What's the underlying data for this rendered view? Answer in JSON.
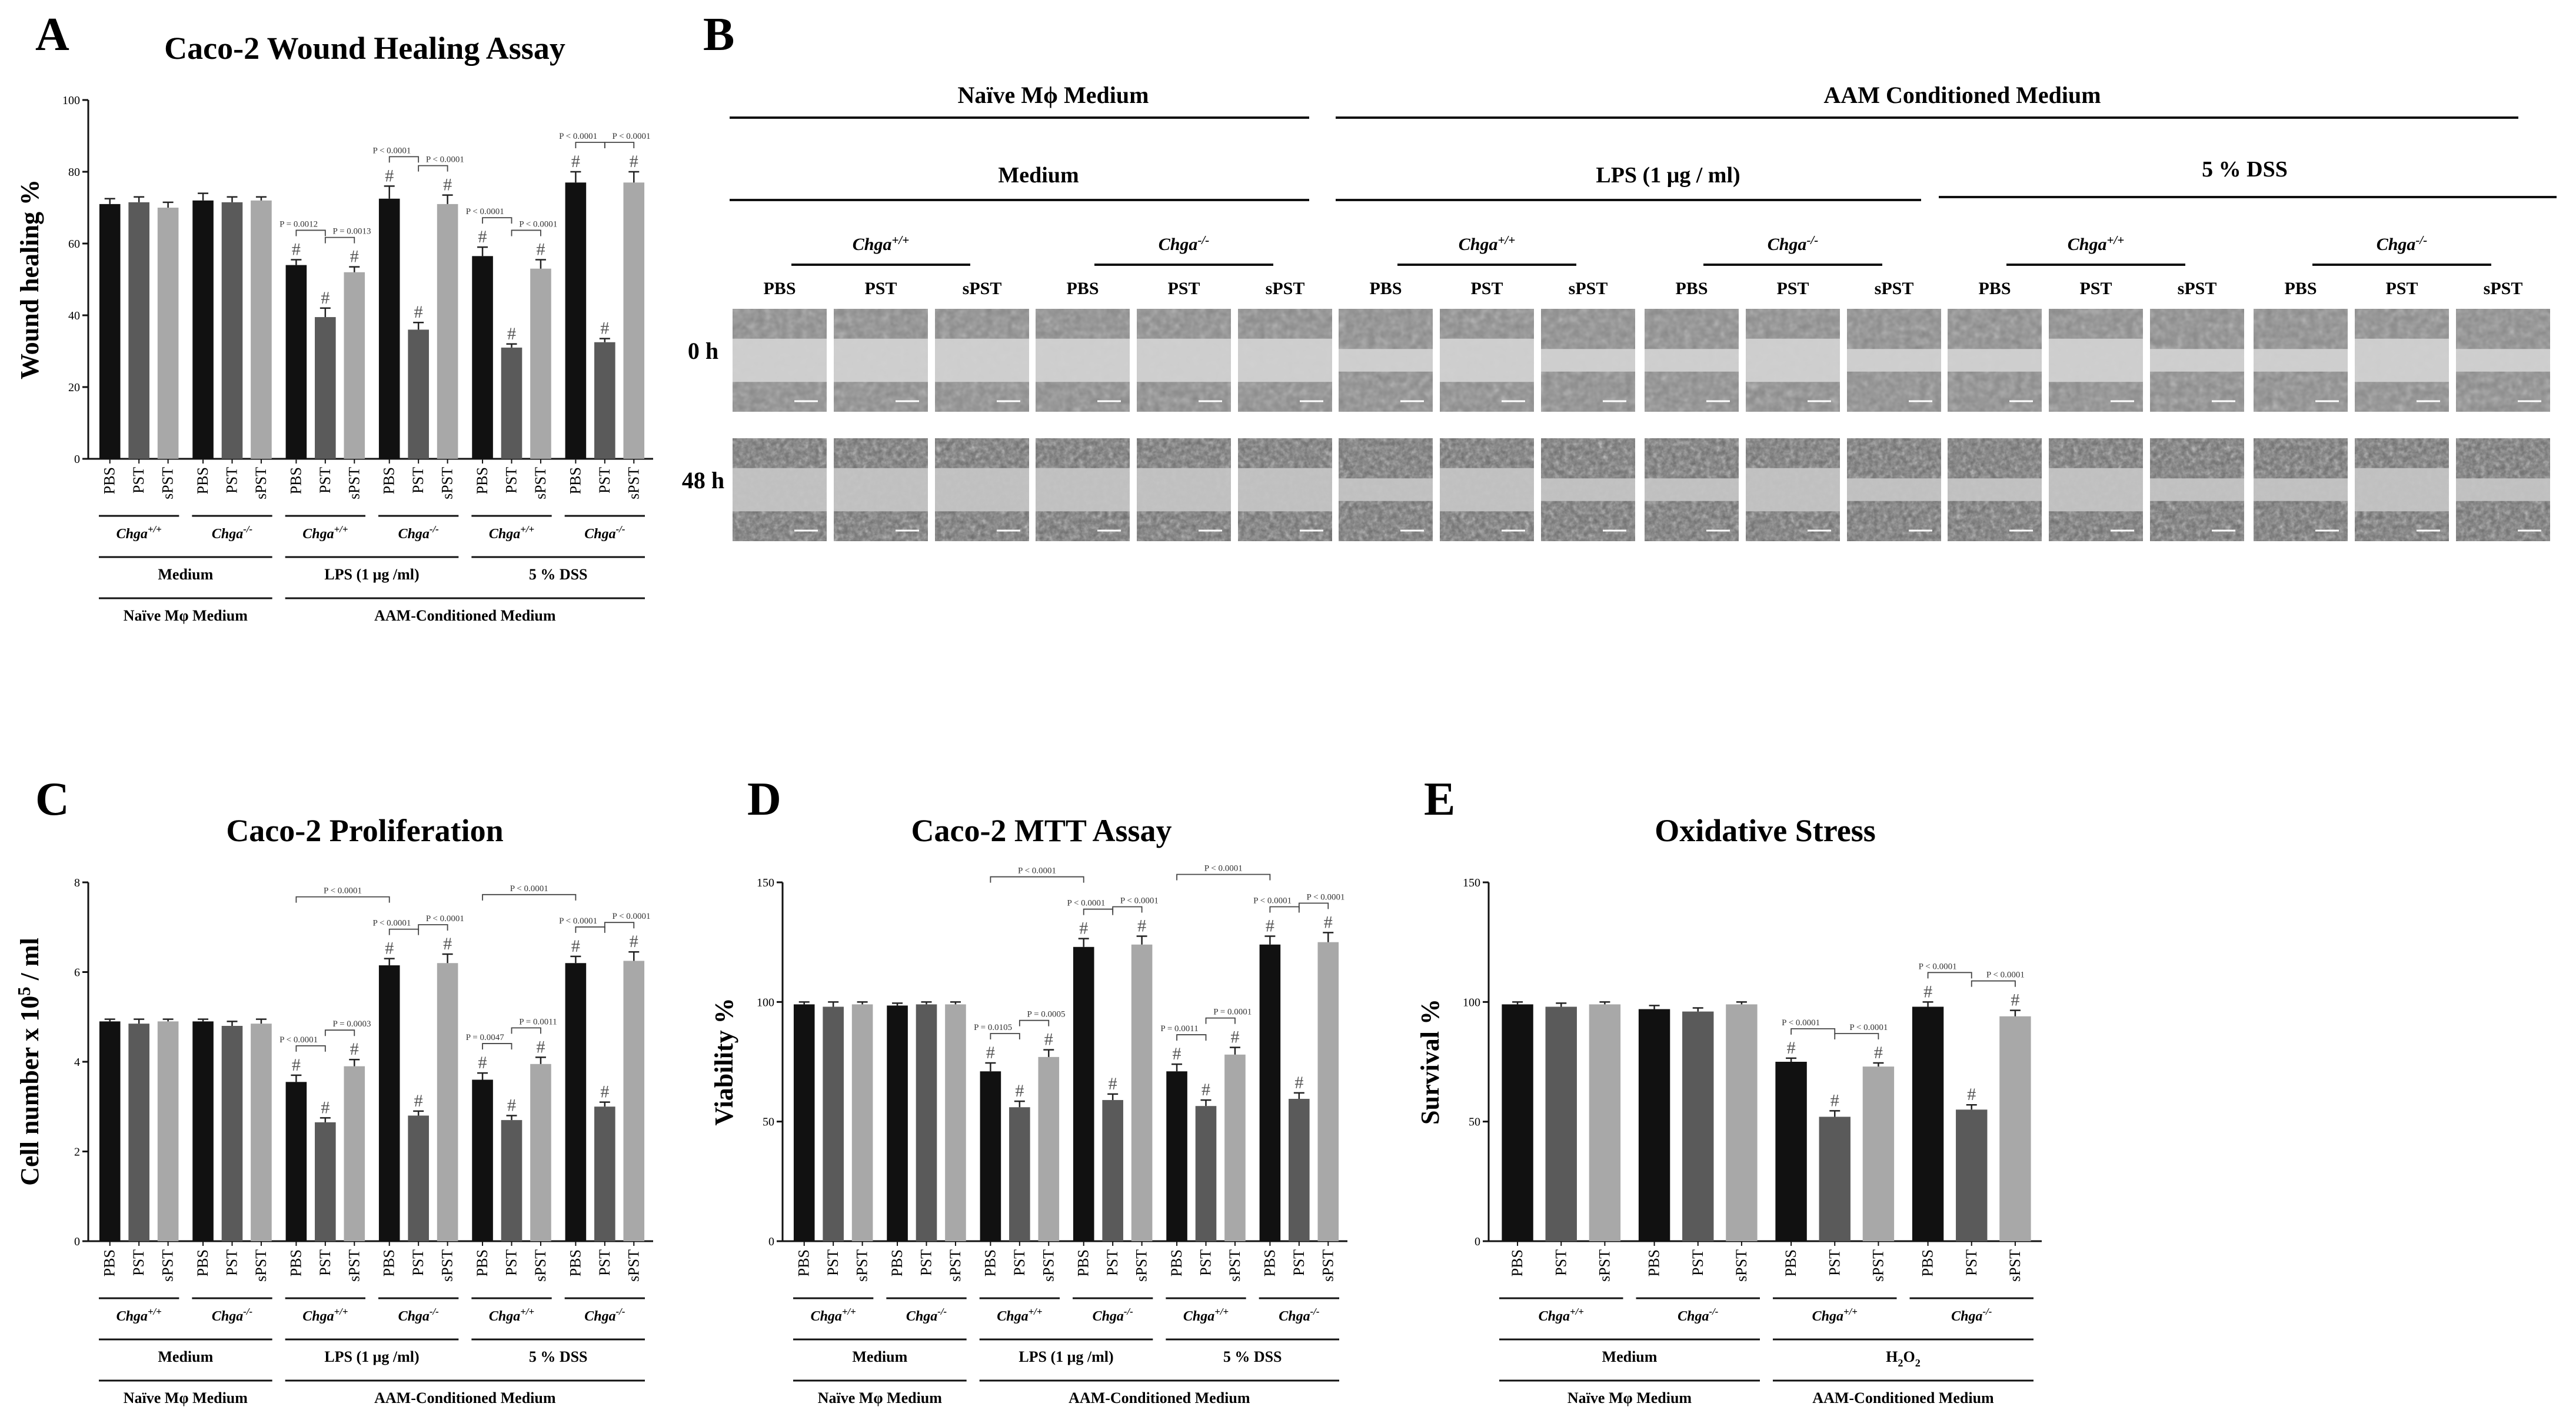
{
  "panel_B": {
    "letter": "B",
    "top_left_title": "Naïve Mϕ Medium",
    "top_right_title": "AAM Conditioned Medium",
    "sub_medium": "Medium",
    "sub_lps": "LPS (1 μg / ml)",
    "sub_dss": "5 % DSS",
    "genotypes": [
      "Chga+/+",
      "Chga-/-",
      "Chga+/+",
      "Chga-/-",
      "Chga+/+",
      "Chga-/-"
    ],
    "columns": [
      "PBS",
      "PST",
      "sPST"
    ],
    "rows": [
      "0 h",
      "48 h"
    ]
  },
  "chart_data": [
    {
      "type": "bar",
      "letter": "A",
      "title": "Caco-2 Wound Healing Assay",
      "ylabel": "Wound healing %",
      "ylim": [
        0,
        100
      ],
      "yticks": [
        "0",
        "20",
        "40",
        "60",
        "80",
        "100"
      ],
      "categories": [
        "PBS",
        "PST",
        "sPST",
        "PBS",
        "PST",
        "sPST",
        "PBS",
        "PST",
        "sPST",
        "PBS",
        "PST",
        "sPST",
        "PBS",
        "PST",
        "sPST",
        "PBS",
        "PST",
        "sPST"
      ],
      "values": [
        71,
        71.5,
        70,
        72,
        71.5,
        72,
        54,
        39.5,
        52,
        72.5,
        36,
        71,
        56.5,
        31,
        53,
        77,
        32.5,
        77
      ],
      "errors": [
        1.5,
        1.5,
        1.5,
        2,
        1.5,
        1,
        1.5,
        2.5,
        1.5,
        3.5,
        2,
        2.5,
        2.5,
        1,
        2.5,
        3,
        1,
        3
      ],
      "colors": [
        "#111111",
        "#5a5a5a",
        "#a8a8a8",
        "#111111",
        "#5a5a5a",
        "#a8a8a8",
        "#111111",
        "#5a5a5a",
        "#a8a8a8",
        "#111111",
        "#5a5a5a",
        "#a8a8a8",
        "#111111",
        "#5a5a5a",
        "#a8a8a8",
        "#111111",
        "#5a5a5a",
        "#a8a8a8"
      ],
      "hash": [
        false,
        false,
        false,
        false,
        false,
        false,
        true,
        true,
        true,
        true,
        true,
        true,
        true,
        true,
        true,
        true,
        true,
        true
      ],
      "genotype_labels": [
        "Chga+/+",
        "Chga-/-",
        "Chga+/+",
        "Chga-/-",
        "Chga+/+",
        "Chga-/-"
      ],
      "treatment_labels": [
        "Medium",
        "LPS (1 μg /ml)",
        "5 % DSS"
      ],
      "medium_labels": [
        "Naïve Mφ Medium",
        "AAM-Conditioned Medium"
      ],
      "comparisons": [
        {
          "a": 6,
          "b": 7,
          "label": "P = 0.0012"
        },
        {
          "a": 7,
          "b": 8,
          "label": "P = 0.0013"
        },
        {
          "a": 9,
          "b": 10,
          "label": "P < 0.0001"
        },
        {
          "a": 10,
          "b": 11,
          "label": "P < 0.0001"
        },
        {
          "a": 12,
          "b": 13,
          "label": "P < 0.0001"
        },
        {
          "a": 13,
          "b": 14,
          "label": "P < 0.0001"
        },
        {
          "a": 15,
          "b": 16,
          "label": "P < 0.0001"
        },
        {
          "a": 16,
          "b": 17,
          "label": "P < 0.0001"
        }
      ]
    },
    {
      "type": "bar",
      "letter": "C",
      "title": "Caco-2 Proliferation",
      "ylabel": "Cell number x 10⁵ / ml",
      "ylim": [
        0,
        8
      ],
      "yticks": [
        "0",
        "2",
        "4",
        "6",
        "8"
      ],
      "categories": [
        "PBS",
        "PST",
        "sPST",
        "PBS",
        "PST",
        "sPST",
        "PBS",
        "PST",
        "sPST",
        "PBS",
        "PST",
        "sPST",
        "PBS",
        "PST",
        "sPST",
        "PBS",
        "PST",
        "sPST"
      ],
      "values": [
        4.9,
        4.85,
        4.9,
        4.9,
        4.8,
        4.85,
        3.55,
        2.65,
        3.9,
        6.15,
        2.8,
        6.2,
        3.6,
        2.7,
        3.95,
        6.2,
        3.0,
        6.25
      ],
      "errors": [
        0.05,
        0.1,
        0.05,
        0.05,
        0.1,
        0.1,
        0.15,
        0.1,
        0.15,
        0.15,
        0.1,
        0.2,
        0.15,
        0.1,
        0.15,
        0.15,
        0.1,
        0.2
      ],
      "colors": [
        "#111111",
        "#5a5a5a",
        "#a8a8a8",
        "#111111",
        "#5a5a5a",
        "#a8a8a8",
        "#111111",
        "#5a5a5a",
        "#a8a8a8",
        "#111111",
        "#5a5a5a",
        "#a8a8a8",
        "#111111",
        "#5a5a5a",
        "#a8a8a8",
        "#111111",
        "#5a5a5a",
        "#a8a8a8"
      ],
      "hash": [
        false,
        false,
        false,
        false,
        false,
        false,
        true,
        true,
        true,
        true,
        true,
        true,
        true,
        true,
        true,
        true,
        true,
        true
      ],
      "genotype_labels": [
        "Chga+/+",
        "Chga-/-",
        "Chga+/+",
        "Chga-/-",
        "Chga+/+",
        "Chga-/-"
      ],
      "treatment_labels": [
        "Medium",
        "LPS (1 μg /ml)",
        "5 % DSS"
      ],
      "medium_labels": [
        "Naïve Mφ Medium",
        "AAM-Conditioned Medium"
      ],
      "comparisons": [
        {
          "a": 6,
          "b": 7,
          "label": "P < 0.0001"
        },
        {
          "a": 7,
          "b": 8,
          "label": "P = 0.0003"
        },
        {
          "a": 9,
          "b": 10,
          "label": "P < 0.0001"
        },
        {
          "a": 10,
          "b": 11,
          "label": "P < 0.0001"
        },
        {
          "a": 6,
          "b": 9,
          "label": "P < 0.0001",
          "level": 2
        },
        {
          "a": 12,
          "b": 13,
          "label": "P = 0.0047"
        },
        {
          "a": 13,
          "b": 14,
          "label": "P = 0.0011"
        },
        {
          "a": 15,
          "b": 16,
          "label": "P < 0.0001"
        },
        {
          "a": 16,
          "b": 17,
          "label": "P < 0.0001"
        },
        {
          "a": 12,
          "b": 15,
          "label": "P < 0.0001",
          "level": 2
        }
      ]
    },
    {
      "type": "bar",
      "letter": "D",
      "title": "Caco-2 MTT Assay",
      "ylabel": "Viability %",
      "ylim": [
        0,
        150
      ],
      "yticks": [
        "0",
        "50",
        "100",
        "150"
      ],
      "categories": [
        "PBS",
        "PST",
        "sPST",
        "PBS",
        "PST",
        "sPST",
        "PBS",
        "PST",
        "sPST",
        "PBS",
        "PST",
        "sPST",
        "PBS",
        "PST",
        "sPST",
        "PBS",
        "PST",
        "sPST"
      ],
      "values": [
        99,
        98,
        99,
        98.5,
        99,
        99,
        71,
        56,
        77,
        123,
        59,
        124,
        71,
        56.5,
        78,
        124,
        59.5,
        125
      ],
      "errors": [
        1,
        2,
        1,
        1,
        1,
        1,
        3.5,
        2.5,
        3,
        3.5,
        2.5,
        3.5,
        3,
        2.5,
        3,
        3.5,
        2.5,
        4
      ],
      "colors": [
        "#111111",
        "#5a5a5a",
        "#a8a8a8",
        "#111111",
        "#5a5a5a",
        "#a8a8a8",
        "#111111",
        "#5a5a5a",
        "#a8a8a8",
        "#111111",
        "#5a5a5a",
        "#a8a8a8",
        "#111111",
        "#5a5a5a",
        "#a8a8a8",
        "#111111",
        "#5a5a5a",
        "#a8a8a8"
      ],
      "hash": [
        false,
        false,
        false,
        false,
        false,
        false,
        true,
        true,
        true,
        true,
        true,
        true,
        true,
        true,
        true,
        true,
        true,
        true
      ],
      "genotype_labels": [
        "Chga+/+",
        "Chga-/-",
        "Chga+/+",
        "Chga-/-",
        "Chga+/+",
        "Chga-/-"
      ],
      "treatment_labels": [
        "Medium",
        "LPS (1 μg /ml)",
        "5 % DSS"
      ],
      "medium_labels": [
        "Naïve Mφ Medium",
        "AAM-Conditioned Medium"
      ],
      "comparisons": [
        {
          "a": 6,
          "b": 7,
          "label": "P = 0.0105"
        },
        {
          "a": 7,
          "b": 8,
          "label": "P = 0.0005"
        },
        {
          "a": 9,
          "b": 10,
          "label": "P < 0.0001"
        },
        {
          "a": 10,
          "b": 11,
          "label": "P < 0.0001"
        },
        {
          "a": 6,
          "b": 9,
          "label": "P < 0.0001",
          "level": 2
        },
        {
          "a": 12,
          "b": 13,
          "label": "P = 0.0011"
        },
        {
          "a": 13,
          "b": 14,
          "label": "P = 0.0001"
        },
        {
          "a": 15,
          "b": 16,
          "label": "P < 0.0001"
        },
        {
          "a": 16,
          "b": 17,
          "label": "P < 0.0001"
        },
        {
          "a": 12,
          "b": 15,
          "label": "P < 0.0001",
          "level": 2
        }
      ]
    },
    {
      "type": "bar",
      "letter": "E",
      "title": "Oxidative Stress",
      "ylabel": "Survival %",
      "ylim": [
        0,
        150
      ],
      "yticks": [
        "0",
        "50",
        "100",
        "150"
      ],
      "categories": [
        "PBS",
        "PST",
        "sPST",
        "PBS",
        "PST",
        "sPST",
        "PBS",
        "PST",
        "sPST",
        "PBS",
        "PST",
        "sPST"
      ],
      "values": [
        99,
        98,
        99,
        97,
        96,
        99,
        75,
        52,
        73,
        98,
        55,
        94
      ],
      "errors": [
        1,
        1.5,
        1,
        1.5,
        1.5,
        1,
        1.5,
        2.5,
        1.5,
        2,
        2,
        2.5
      ],
      "colors": [
        "#111111",
        "#5a5a5a",
        "#a8a8a8",
        "#111111",
        "#5a5a5a",
        "#a8a8a8",
        "#111111",
        "#5a5a5a",
        "#a8a8a8",
        "#111111",
        "#5a5a5a",
        "#a8a8a8"
      ],
      "hash": [
        false,
        false,
        false,
        false,
        false,
        false,
        true,
        true,
        true,
        true,
        true,
        true
      ],
      "genotype_labels": [
        "Chga+/+",
        "Chga-/-",
        "Chga+/+",
        "Chga-/-"
      ],
      "treatment_labels": [
        "Medium",
        "H₂O₂"
      ],
      "medium_labels": [
        "Naïve Mφ Medium",
        "AAM-Conditioned Medium"
      ],
      "comparisons": [
        {
          "a": 6,
          "b": 7,
          "label": "P < 0.0001"
        },
        {
          "a": 7,
          "b": 8,
          "label": "P < 0.0001"
        },
        {
          "a": 9,
          "b": 10,
          "label": "P < 0.0001"
        },
        {
          "a": 10,
          "b": 11,
          "label": "P < 0.0001"
        }
      ]
    }
  ]
}
